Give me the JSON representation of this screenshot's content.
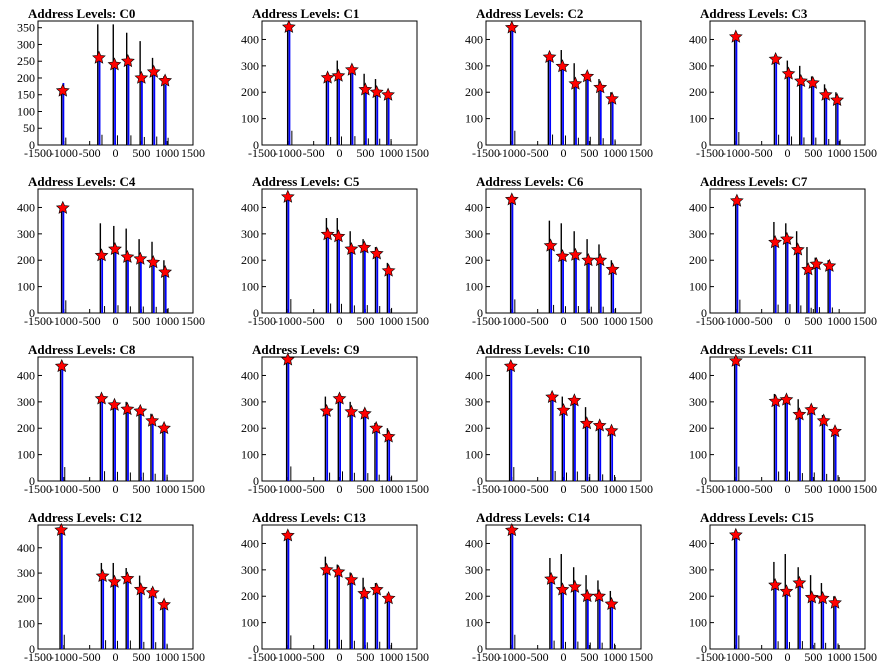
{
  "chart_data": [
    {
      "type": "bar",
      "title": "Address Levels: C0",
      "xlim": [
        -1500,
        1500
      ],
      "xticks": [
        -1500,
        -1000,
        -500,
        0,
        500,
        1000,
        1500
      ],
      "ylim": [
        0,
        370
      ],
      "yticks": [
        0,
        50,
        100,
        150,
        200,
        250,
        300,
        350
      ],
      "peaks": [
        {
          "x": -1020,
          "black": 170,
          "blue": 185,
          "star": 162
        },
        {
          "x": -320,
          "black": 360,
          "blue": 255,
          "star": 260
        },
        {
          "x": -20,
          "black": 360,
          "blue": 240,
          "star": 240
        },
        {
          "x": 240,
          "black": 335,
          "blue": 240,
          "star": 250
        },
        {
          "x": 500,
          "black": 310,
          "blue": 200,
          "star": 200
        },
        {
          "x": 740,
          "black": 260,
          "blue": 210,
          "star": 218
        },
        {
          "x": 960,
          "black": 205,
          "blue": 180,
          "star": 192
        }
      ]
    },
    {
      "type": "bar",
      "title": "Address Levels: C1",
      "xlim": [
        -1500,
        1500
      ],
      "xticks": [
        -1500,
        -1000,
        -500,
        0,
        500,
        1000,
        1500
      ],
      "ylim": [
        0,
        470
      ],
      "yticks": [
        0,
        100,
        200,
        300,
        400
      ],
      "peaks": [
        {
          "x": -980,
          "black": 460,
          "blue": 450,
          "star": 447
        },
        {
          "x": -230,
          "black": 260,
          "blue": 255,
          "star": 255
        },
        {
          "x": -20,
          "black": 320,
          "blue": 270,
          "star": 262
        },
        {
          "x": 240,
          "black": 290,
          "blue": 280,
          "star": 285
        },
        {
          "x": 500,
          "black": 270,
          "blue": 210,
          "star": 210
        },
        {
          "x": 720,
          "black": 250,
          "blue": 200,
          "star": 200
        },
        {
          "x": 940,
          "black": 200,
          "blue": 190,
          "star": 190
        }
      ]
    },
    {
      "type": "bar",
      "title": "Address Levels: C2",
      "xlim": [
        -1500,
        1500
      ],
      "xticks": [
        -1500,
        -1000,
        -500,
        0,
        500,
        1000,
        1500
      ],
      "ylim": [
        0,
        470
      ],
      "yticks": [
        0,
        100,
        200,
        300,
        400
      ],
      "peaks": [
        {
          "x": -1000,
          "black": 450,
          "blue": 450,
          "star": 445
        },
        {
          "x": -270,
          "black": 340,
          "blue": 330,
          "star": 333
        },
        {
          "x": -20,
          "black": 360,
          "blue": 300,
          "star": 298
        },
        {
          "x": 230,
          "black": 310,
          "blue": 230,
          "star": 232
        },
        {
          "x": 460,
          "black": 270,
          "blue": 260,
          "star": 260
        },
        {
          "x": 710,
          "black": 250,
          "blue": 215,
          "star": 218
        },
        {
          "x": 940,
          "black": 200,
          "blue": 175,
          "star": 175
        }
      ]
    },
    {
      "type": "bar",
      "title": "Address Levels: C3",
      "xlim": [
        -1500,
        1500
      ],
      "xticks": [
        -1500,
        -1000,
        -500,
        0,
        500,
        1000,
        1500
      ],
      "ylim": [
        0,
        470
      ],
      "yticks": [
        0,
        100,
        200,
        300,
        400
      ],
      "peaks": [
        {
          "x": -1000,
          "black": 410,
          "blue": 410,
          "star": 410
        },
        {
          "x": -230,
          "black": 320,
          "blue": 325,
          "star": 325
        },
        {
          "x": 20,
          "black": 320,
          "blue": 270,
          "star": 270
        },
        {
          "x": 260,
          "black": 300,
          "blue": 240,
          "star": 242
        },
        {
          "x": 490,
          "black": 260,
          "blue": 235,
          "star": 235
        },
        {
          "x": 740,
          "black": 230,
          "blue": 190,
          "star": 190
        },
        {
          "x": 960,
          "black": 200,
          "blue": 170,
          "star": 170
        }
      ]
    },
    {
      "type": "bar",
      "title": "Address Levels: C4",
      "xlim": [
        -1500,
        1500
      ],
      "xticks": [
        -1500,
        -1000,
        -500,
        0,
        500,
        1000,
        1500
      ],
      "ylim": [
        0,
        470
      ],
      "yticks": [
        0,
        100,
        200,
        300,
        400
      ],
      "peaks": [
        {
          "x": -1020,
          "black": 400,
          "blue": 400,
          "star": 398
        },
        {
          "x": -270,
          "black": 340,
          "blue": 220,
          "star": 218
        },
        {
          "x": -10,
          "black": 330,
          "blue": 245,
          "star": 242
        },
        {
          "x": 230,
          "black": 320,
          "blue": 210,
          "star": 212
        },
        {
          "x": 480,
          "black": 280,
          "blue": 205,
          "star": 205
        },
        {
          "x": 730,
          "black": 270,
          "blue": 195,
          "star": 192
        },
        {
          "x": 960,
          "black": 200,
          "blue": 155,
          "star": 155
        }
      ]
    },
    {
      "type": "bar",
      "title": "Address Levels: C5",
      "xlim": [
        -1500,
        1500
      ],
      "xticks": [
        -1500,
        -1000,
        -500,
        0,
        500,
        1000,
        1500
      ],
      "ylim": [
        0,
        470
      ],
      "yticks": [
        0,
        100,
        200,
        300,
        400
      ],
      "peaks": [
        {
          "x": -1000,
          "black": 440,
          "blue": 440,
          "star": 440
        },
        {
          "x": -230,
          "black": 360,
          "blue": 300,
          "star": 298
        },
        {
          "x": -20,
          "black": 360,
          "blue": 290,
          "star": 290
        },
        {
          "x": 230,
          "black": 310,
          "blue": 240,
          "star": 242
        },
        {
          "x": 480,
          "black": 280,
          "blue": 250,
          "star": 248
        },
        {
          "x": 720,
          "black": 250,
          "blue": 220,
          "star": 225
        },
        {
          "x": 950,
          "black": 190,
          "blue": 160,
          "star": 160
        }
      ]
    },
    {
      "type": "bar",
      "title": "Address Levels: C6",
      "xlim": [
        -1500,
        1500
      ],
      "xticks": [
        -1500,
        -1000,
        -500,
        0,
        500,
        1000,
        1500
      ],
      "ylim": [
        0,
        470
      ],
      "yticks": [
        0,
        100,
        200,
        300,
        400
      ],
      "peaks": [
        {
          "x": -1000,
          "black": 430,
          "blue": 430,
          "star": 430
        },
        {
          "x": -250,
          "black": 350,
          "blue": 255,
          "star": 255
        },
        {
          "x": -20,
          "black": 340,
          "blue": 215,
          "star": 215
        },
        {
          "x": 230,
          "black": 310,
          "blue": 220,
          "star": 220
        },
        {
          "x": 480,
          "black": 280,
          "blue": 200,
          "star": 200
        },
        {
          "x": 710,
          "black": 260,
          "blue": 200,
          "star": 200
        },
        {
          "x": 950,
          "black": 200,
          "blue": 160,
          "star": 165
        }
      ]
    },
    {
      "type": "bar",
      "title": "Address Levels: C7",
      "xlim": [
        -1500,
        1500
      ],
      "xticks": [
        -1500,
        -1000,
        -500,
        0,
        500,
        1000,
        1500
      ],
      "ylim": [
        0,
        470
      ],
      "yticks": [
        0,
        100,
        200,
        300,
        400
      ],
      "peaks": [
        {
          "x": -980,
          "black": 430,
          "blue": 420,
          "star": 425
        },
        {
          "x": -240,
          "black": 345,
          "blue": 265,
          "star": 268
        },
        {
          "x": -10,
          "black": 340,
          "blue": 280,
          "star": 280
        },
        {
          "x": 200,
          "black": 310,
          "blue": 240,
          "star": 240
        },
        {
          "x": 400,
          "black": 250,
          "blue": 165,
          "star": 165
        },
        {
          "x": 560,
          "black": 210,
          "blue": 185,
          "star": 185
        },
        {
          "x": 810,
          "black": 200,
          "blue": 175,
          "star": 178
        }
      ]
    },
    {
      "type": "bar",
      "title": "Address Levels: C8",
      "xlim": [
        -1500,
        1500
      ],
      "xticks": [
        -1500,
        -1000,
        -500,
        0,
        500,
        1000,
        1500
      ],
      "ylim": [
        0,
        470
      ],
      "yticks": [
        0,
        100,
        200,
        300,
        400
      ],
      "peaks": [
        {
          "x": -1040,
          "black": 440,
          "blue": 440,
          "star": 435
        },
        {
          "x": -270,
          "black": 320,
          "blue": 310,
          "star": 312
        },
        {
          "x": -20,
          "black": 300,
          "blue": 290,
          "star": 288
        },
        {
          "x": 230,
          "black": 300,
          "blue": 270,
          "star": 272
        },
        {
          "x": 480,
          "black": 280,
          "blue": 265,
          "star": 265
        },
        {
          "x": 710,
          "black": 255,
          "blue": 230,
          "star": 228
        },
        {
          "x": 940,
          "black": 210,
          "blue": 200,
          "star": 200
        }
      ]
    },
    {
      "type": "bar",
      "title": "Address Levels: C9",
      "xlim": [
        -1500,
        1500
      ],
      "xticks": [
        -1500,
        -1000,
        -500,
        0,
        500,
        1000,
        1500
      ],
      "ylim": [
        0,
        470
      ],
      "yticks": [
        0,
        100,
        200,
        300,
        400
      ],
      "peaks": [
        {
          "x": -1000,
          "black": 460,
          "blue": 460,
          "star": 460
        },
        {
          "x": -250,
          "black": 320,
          "blue": 265,
          "star": 265
        },
        {
          "x": 0,
          "black": 310,
          "blue": 305,
          "star": 312
        },
        {
          "x": 230,
          "black": 300,
          "blue": 260,
          "star": 262
        },
        {
          "x": 490,
          "black": 270,
          "blue": 250,
          "star": 255
        },
        {
          "x": 710,
          "black": 220,
          "blue": 200,
          "star": 200
        },
        {
          "x": 950,
          "black": 200,
          "blue": 170,
          "star": 168
        }
      ]
    },
    {
      "type": "bar",
      "title": "Address Levels: C10",
      "xlim": [
        -1500,
        1500
      ],
      "xticks": [
        -1500,
        -1000,
        -500,
        0,
        500,
        1000,
        1500
      ],
      "ylim": [
        0,
        470
      ],
      "yticks": [
        0,
        100,
        200,
        300,
        400
      ],
      "peaks": [
        {
          "x": -1020,
          "black": 440,
          "blue": 440,
          "star": 435
        },
        {
          "x": -220,
          "black": 320,
          "blue": 315,
          "star": 318
        },
        {
          "x": 0,
          "black": 320,
          "blue": 270,
          "star": 268
        },
        {
          "x": 210,
          "black": 310,
          "blue": 300,
          "star": 305
        },
        {
          "x": 450,
          "black": 280,
          "blue": 220,
          "star": 218
        },
        {
          "x": 700,
          "black": 220,
          "blue": 210,
          "star": 210
        },
        {
          "x": 930,
          "black": 200,
          "blue": 190,
          "star": 190
        }
      ]
    },
    {
      "type": "bar",
      "title": "Address Levels: C11",
      "xlim": [
        -1500,
        1500
      ],
      "xticks": [
        -1500,
        -1000,
        -500,
        0,
        500,
        1000,
        1500
      ],
      "ylim": [
        0,
        470
      ],
      "yticks": [
        0,
        100,
        200,
        300,
        400
      ],
      "peaks": [
        {
          "x": -1000,
          "black": 455,
          "blue": 455,
          "star": 455
        },
        {
          "x": -230,
          "black": 330,
          "blue": 300,
          "star": 302
        },
        {
          "x": -20,
          "black": 320,
          "blue": 300,
          "star": 308
        },
        {
          "x": 230,
          "black": 310,
          "blue": 250,
          "star": 252
        },
        {
          "x": 460,
          "black": 280,
          "blue": 270,
          "star": 270
        },
        {
          "x": 700,
          "black": 250,
          "blue": 225,
          "star": 228
        },
        {
          "x": 920,
          "black": 200,
          "blue": 185,
          "star": 188
        }
      ]
    },
    {
      "type": "bar",
      "title": "Address Levels: C12",
      "xlim": [
        -1500,
        1500
      ],
      "xticks": [
        -1500,
        -1000,
        -500,
        0,
        500,
        1000,
        1500
      ],
      "ylim": [
        0,
        490
      ],
      "yticks": [
        0,
        100,
        200,
        300,
        400
      ],
      "peaks": [
        {
          "x": -1050,
          "black": 470,
          "blue": 470,
          "star": 470
        },
        {
          "x": -250,
          "black": 340,
          "blue": 290,
          "star": 288
        },
        {
          "x": -20,
          "black": 340,
          "blue": 270,
          "star": 265
        },
        {
          "x": 230,
          "black": 320,
          "blue": 280,
          "star": 278
        },
        {
          "x": 490,
          "black": 290,
          "blue": 235,
          "star": 235
        },
        {
          "x": 720,
          "black": 240,
          "blue": 225,
          "star": 222
        },
        {
          "x": 940,
          "black": 190,
          "blue": 175,
          "star": 175
        }
      ]
    },
    {
      "type": "bar",
      "title": "Address Levels: C13",
      "xlim": [
        -1500,
        1500
      ],
      "xticks": [
        -1500,
        -1000,
        -500,
        0,
        500,
        1000,
        1500
      ],
      "ylim": [
        0,
        470
      ],
      "yticks": [
        0,
        100,
        200,
        300,
        400
      ],
      "peaks": [
        {
          "x": -1000,
          "black": 430,
          "blue": 430,
          "star": 430
        },
        {
          "x": -250,
          "black": 350,
          "blue": 300,
          "star": 300
        },
        {
          "x": -20,
          "black": 320,
          "blue": 290,
          "star": 292
        },
        {
          "x": 230,
          "black": 290,
          "blue": 260,
          "star": 262
        },
        {
          "x": 480,
          "black": 270,
          "blue": 210,
          "star": 210
        },
        {
          "x": 720,
          "black": 250,
          "blue": 230,
          "star": 225
        },
        {
          "x": 950,
          "black": 210,
          "blue": 195,
          "star": 192
        }
      ]
    },
    {
      "type": "bar",
      "title": "Address Levels: C14",
      "xlim": [
        -1500,
        1500
      ],
      "xticks": [
        -1500,
        -1000,
        -500,
        0,
        500,
        1000,
        1500
      ],
      "ylim": [
        0,
        470
      ],
      "yticks": [
        0,
        100,
        200,
        300,
        400
      ],
      "peaks": [
        {
          "x": -1000,
          "black": 460,
          "blue": 450,
          "star": 450
        },
        {
          "x": -240,
          "black": 345,
          "blue": 265,
          "star": 265
        },
        {
          "x": -20,
          "black": 360,
          "blue": 225,
          "star": 225
        },
        {
          "x": 220,
          "black": 310,
          "blue": 235,
          "star": 235
        },
        {
          "x": 460,
          "black": 280,
          "blue": 205,
          "star": 200
        },
        {
          "x": 690,
          "black": 260,
          "blue": 200,
          "star": 200
        },
        {
          "x": 930,
          "black": 220,
          "blue": 170,
          "star": 170
        }
      ]
    },
    {
      "type": "bar",
      "title": "Address Levels: C15",
      "xlim": [
        -1500,
        1500
      ],
      "xticks": [
        -1500,
        -1000,
        -500,
        0,
        500,
        1000,
        1500
      ],
      "ylim": [
        0,
        470
      ],
      "yticks": [
        0,
        100,
        200,
        300,
        400
      ],
      "peaks": [
        {
          "x": -1000,
          "black": 430,
          "blue": 430,
          "star": 432
        },
        {
          "x": -240,
          "black": 330,
          "blue": 245,
          "star": 242
        },
        {
          "x": -20,
          "black": 360,
          "blue": 220,
          "star": 218
        },
        {
          "x": 230,
          "black": 310,
          "blue": 250,
          "star": 250
        },
        {
          "x": 470,
          "black": 280,
          "blue": 195,
          "star": 195
        },
        {
          "x": 680,
          "black": 250,
          "blue": 195,
          "star": 192
        },
        {
          "x": 920,
          "black": 200,
          "blue": 175,
          "star": 175
        }
      ]
    }
  ],
  "colors": {
    "black_series": "#000000",
    "blue_series": "#0000ff",
    "star_marker": "#ff0000",
    "star_outline": "#000000",
    "frame": "#000000"
  }
}
